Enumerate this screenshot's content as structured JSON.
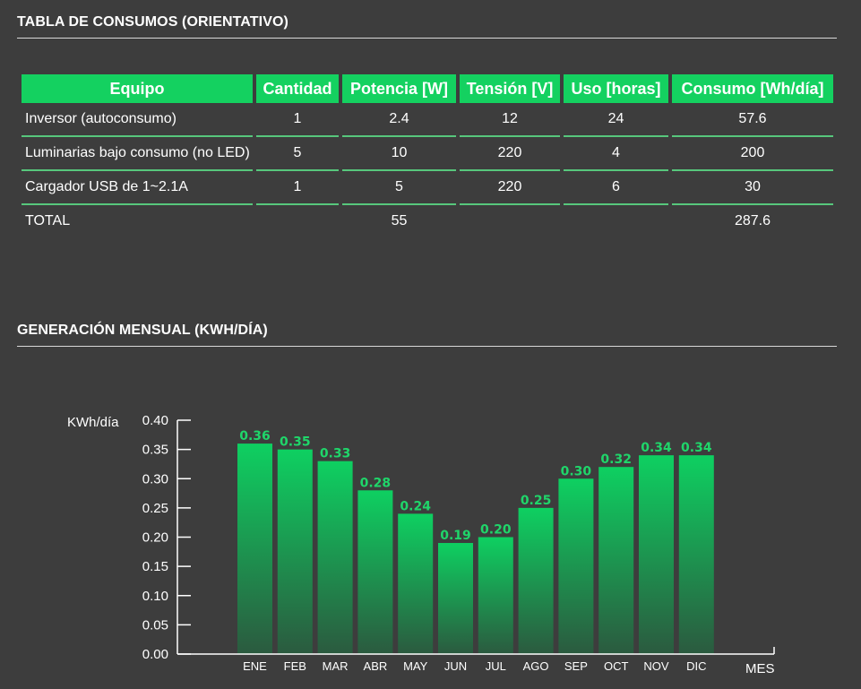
{
  "table_section": {
    "title": "TABLA DE CONSUMOS (ORIENTATIVO)",
    "headers": [
      "Equipo",
      "Cantidad",
      "Potencia [W]",
      "Tensión [V]",
      "Uso [horas]",
      "Consumo [Wh/día]"
    ],
    "rows": [
      [
        "Inversor (autoconsumo)",
        "1",
        "2.4",
        "12",
        "24",
        "57.6"
      ],
      [
        "Luminarias bajo consumo (no LED)",
        "5",
        "10",
        "220",
        "4",
        "200"
      ],
      [
        "Cargador USB de 1~2.1A",
        "1",
        "5",
        "220",
        "6",
        "30"
      ]
    ],
    "total": [
      "TOTAL",
      "",
      "55",
      "",
      "",
      "287.6"
    ]
  },
  "chart_section": {
    "title": "GENERACIÓN MENSUAL (KWH/DÍA)"
  },
  "chart_data": {
    "type": "bar",
    "categories": [
      "ENE",
      "FEB",
      "MAR",
      "ABR",
      "MAY",
      "JUN",
      "JUL",
      "AGO",
      "SEP",
      "OCT",
      "NOV",
      "DIC"
    ],
    "values": [
      0.36,
      0.35,
      0.33,
      0.28,
      0.24,
      0.19,
      0.2,
      0.25,
      0.3,
      0.32,
      0.34,
      0.34
    ],
    "value_labels": [
      "0.36",
      "0.35",
      "0.33",
      "0.28",
      "0.24",
      "0.19",
      "0.20",
      "0.25",
      "0.30",
      "0.32",
      "0.34",
      "0.34"
    ],
    "ylabel": "KWh/día",
    "xlabel": "MES",
    "ylim": [
      0,
      0.4
    ],
    "yticks": [
      "0.00",
      "0.05",
      "0.10",
      "0.15",
      "0.20",
      "0.25",
      "0.30",
      "0.35",
      "0.40"
    ],
    "grid": false,
    "colors": {
      "bar_top": "#0ed061",
      "bar_bottom": "#2b5a3f",
      "value_label": "#1fd66a"
    }
  }
}
